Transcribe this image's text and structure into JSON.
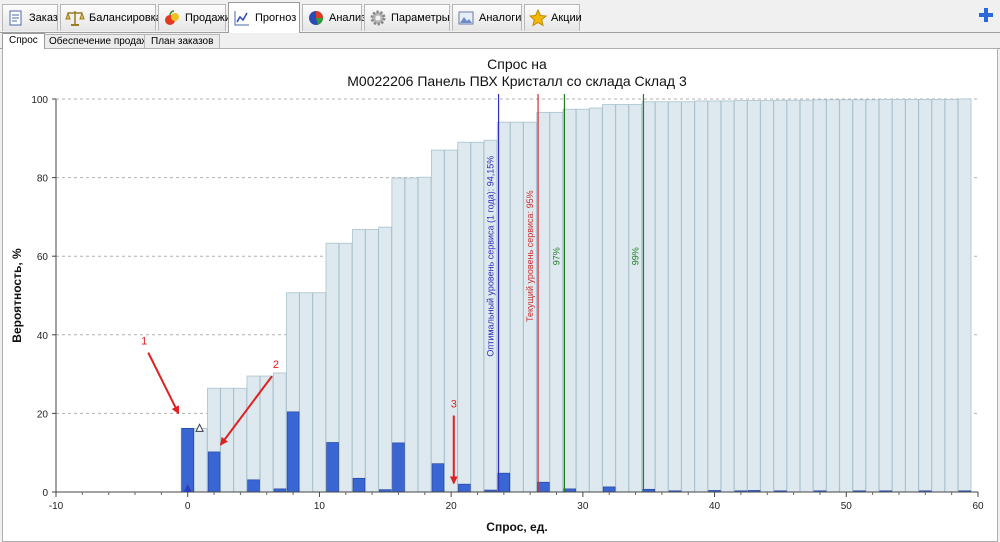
{
  "tabs": [
    {
      "label": "Заказ",
      "icon": "order-icon"
    },
    {
      "label": "Балансировка",
      "icon": "scales-icon"
    },
    {
      "label": "Продажи",
      "icon": "fruit-icon"
    },
    {
      "label": "Прогноз",
      "icon": "chart-icon"
    },
    {
      "label": "Анализ",
      "icon": "pie-chart-icon"
    },
    {
      "label": "Параметры",
      "icon": "gear-icon"
    },
    {
      "label": "Аналоги",
      "icon": "image-icon"
    },
    {
      "label": "Акции",
      "icon": "star-icon"
    }
  ],
  "active_tab": "Прогноз",
  "subtabs": [
    {
      "label": "Спрос"
    },
    {
      "label": "Обеспечение продаж"
    },
    {
      "label": "План заказов"
    }
  ],
  "active_subtab": "Спрос",
  "chart_data": {
    "type": "bar",
    "title": [
      "Спрос на",
      "М0022206 Панель ПВХ Кристалл со склада Склад 3"
    ],
    "xlabel": "Спрос, ед.",
    "ylabel": "Вероятность, %",
    "xlim": [
      -10,
      60
    ],
    "ylim": [
      0,
      100
    ],
    "xticks": [
      -10,
      0,
      10,
      20,
      30,
      40,
      50,
      60
    ],
    "yticks": [
      0,
      20,
      40,
      60,
      80,
      100
    ],
    "grid": "horizontal dashed",
    "series": [
      {
        "name": "",
        "kind": "cumulative",
        "color": "#dde9ee",
        "x": [
          0,
          1,
          2,
          3,
          4,
          5,
          6,
          7,
          8,
          9,
          10,
          11,
          12,
          13,
          14,
          15,
          16,
          17,
          18,
          19,
          20,
          21,
          22,
          23,
          24,
          25,
          26,
          27,
          28,
          29,
          30,
          31,
          32,
          33,
          34,
          35,
          36,
          37,
          38,
          39,
          40,
          41,
          42,
          43,
          44,
          45,
          46,
          47,
          48,
          49,
          50,
          51,
          52,
          53,
          54,
          55,
          56,
          57,
          58,
          59
        ],
        "values": [
          16.2,
          16.2,
          26.4,
          26.4,
          26.4,
          29.5,
          29.5,
          30.3,
          50.7,
          50.7,
          50.7,
          63.3,
          63.3,
          66.8,
          66.8,
          67.4,
          79.9,
          79.9,
          80.1,
          87.0,
          87.0,
          89.0,
          89.0,
          89.5,
          94.1,
          94.1,
          94.1,
          96.6,
          96.6,
          97.4,
          97.4,
          97.7,
          98.6,
          98.6,
          98.6,
          99.3,
          99.3,
          99.3,
          99.3,
          99.5,
          99.5,
          99.5,
          99.6,
          99.6,
          99.6,
          99.7,
          99.7,
          99.7,
          99.8,
          99.8,
          99.8,
          99.8,
          99.8,
          99.9,
          99.9,
          99.9,
          99.9,
          99.9,
          99.9,
          100
        ]
      },
      {
        "name": "",
        "kind": "probability",
        "color": "#3a66d4",
        "x": [
          0,
          2,
          5,
          7,
          8,
          11,
          13,
          15,
          16,
          19,
          21,
          23,
          24,
          27,
          29,
          32,
          35,
          37,
          40,
          42,
          43,
          45,
          48,
          51,
          53,
          56,
          59
        ],
        "values": [
          16.2,
          10.2,
          3.1,
          0.8,
          20.4,
          12.6,
          3.5,
          0.6,
          12.5,
          7.2,
          2.0,
          0.5,
          4.8,
          2.5,
          0.8,
          1.3,
          0.7,
          0.3,
          0.4,
          0.3,
          0.4,
          0.2,
          0.2,
          0.2,
          0.2,
          0.2,
          0.2
        ]
      }
    ],
    "vlines": [
      {
        "x": 23.6,
        "color": "#3030c0",
        "label": "Оптимальный уровень сервиса (1 года): 94,15%"
      },
      {
        "x": 26.6,
        "color": "#d03030",
        "label": "Текущий уровень сервиса: 95%"
      },
      {
        "x": 28.6,
        "color": "#208020",
        "label": "97%"
      },
      {
        "x": 34.6,
        "color": "#208020",
        "label": "99%"
      }
    ],
    "markers": [
      {
        "x": 0,
        "y": 0,
        "shape": "triangle-filled",
        "color": "#2a3ec0"
      },
      {
        "x": 0.9,
        "y": 16.2,
        "shape": "triangle-outline",
        "color": "#3a3a50"
      }
    ],
    "annotations": [
      {
        "text": "1",
        "color": "#e02020",
        "target": {
          "x": -0.7,
          "y": 20
        },
        "text_at": {
          "x": -3.3,
          "y": 37.5
        }
      },
      {
        "text": "2",
        "color": "#e02020",
        "target": {
          "x": 2.5,
          "y": 12
        },
        "text_at": {
          "x": 6.7,
          "y": 31.5
        }
      },
      {
        "text": "3",
        "color": "#e02020",
        "target": {
          "x": 20.2,
          "y": 2.2
        },
        "text_at": {
          "x": 20.2,
          "y": 21.5
        }
      }
    ]
  }
}
